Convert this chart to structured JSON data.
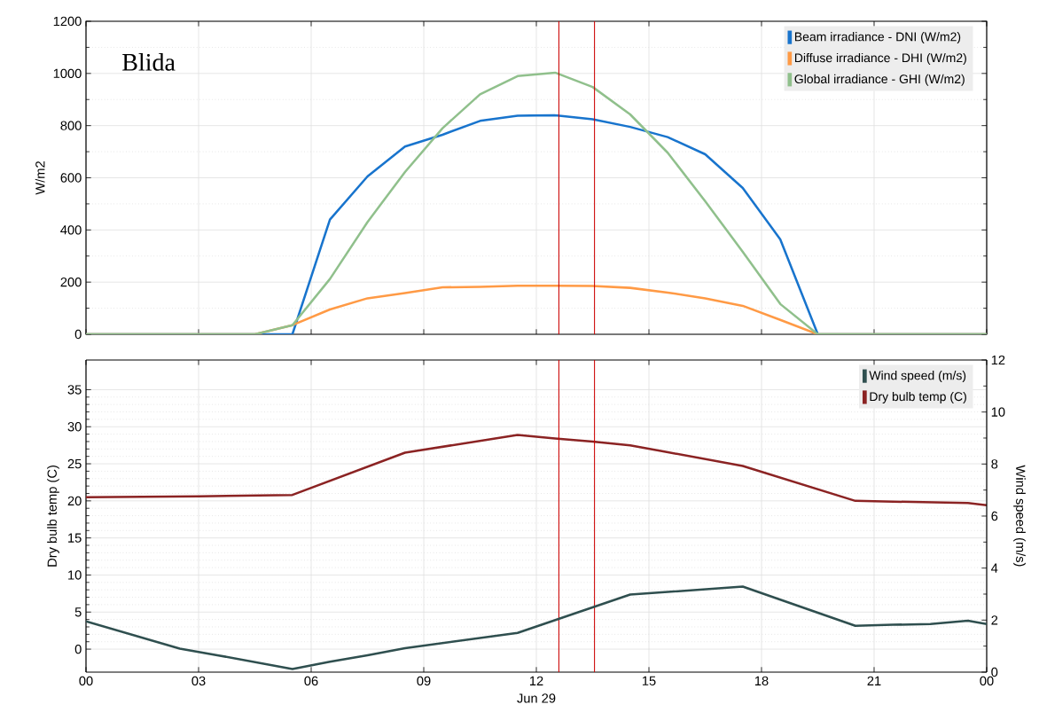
{
  "chart_data": [
    {
      "type": "line",
      "ylabel": "W/m2",
      "annotations": [
        "Blida"
      ],
      "xlim": [
        0,
        24
      ],
      "xticks": [
        {
          "value": 0,
          "label": null
        },
        {
          "value": 3,
          "label": null
        },
        {
          "value": 6,
          "label": null
        },
        {
          "value": 9,
          "label": null
        },
        {
          "value": 12,
          "label": null
        },
        {
          "value": 15,
          "label": null
        },
        {
          "value": 18,
          "label": null
        },
        {
          "value": 21,
          "label": null
        },
        {
          "value": 24,
          "label": null
        }
      ],
      "ylim": [
        0,
        1200
      ],
      "yticks": [
        0,
        200,
        400,
        600,
        800,
        1000,
        1200
      ],
      "tick_labels": "y",
      "grid": true,
      "legend": "top right",
      "marker": "none",
      "line_style": "solid",
      "ref_lines": [
        {
          "axis": "x",
          "value": 12.6,
          "color": "#cc0000"
        },
        {
          "axis": "x",
          "value": 13.55,
          "color": "#cc0000"
        }
      ],
      "series": [
        {
          "name": "Beam irradiance - DNI (W/m2)",
          "color": "#1874cd",
          "x": [
            0,
            5.5,
            6.5,
            7.5,
            8.5,
            9.5,
            10.5,
            11.5,
            12.5,
            13.5,
            14.5,
            15.5,
            16.5,
            17.5,
            18.5,
            19.5,
            24
          ],
          "values": [
            0,
            0,
            440,
            605,
            720,
            765,
            818,
            838,
            840,
            824,
            795,
            756,
            690,
            561,
            364,
            0,
            0
          ]
        },
        {
          "name": "Diffuse irradiance - DHI (W/m2)",
          "color": "#ff9a45",
          "x": [
            0,
            4.5,
            5.5,
            6.5,
            7.5,
            8.5,
            9.5,
            10.5,
            11.5,
            12.5,
            13.5,
            14.5,
            15.5,
            16.5,
            17.5,
            18.5,
            19.5,
            24
          ],
          "values": [
            0,
            0,
            35,
            95,
            138,
            158,
            180,
            182,
            186,
            186,
            185,
            178,
            160,
            138,
            109,
            55,
            0,
            0
          ]
        },
        {
          "name": "Global irradiance - GHI (W/m2)",
          "color": "#90c08c",
          "x": [
            0,
            4.5,
            5.5,
            6.5,
            7.5,
            8.5,
            9.5,
            10.5,
            11.5,
            12.5,
            13.5,
            14.5,
            15.5,
            16.5,
            17.5,
            18.5,
            19.5,
            24
          ],
          "values": [
            0,
            0,
            35,
            212,
            430,
            622,
            790,
            920,
            990,
            1003,
            948,
            843,
            696,
            510,
            316,
            116,
            0,
            0
          ]
        }
      ]
    },
    {
      "type": "line",
      "xlabel": "Jun 29",
      "ylabel": "Dry bulb temp (C)",
      "y2label": "Wind speed (m/s)",
      "xlim": [
        0,
        24
      ],
      "xticks": [
        {
          "value": 0,
          "label": "00"
        },
        {
          "value": 3,
          "label": "03"
        },
        {
          "value": 6,
          "label": "06"
        },
        {
          "value": 9,
          "label": "09"
        },
        {
          "value": 12,
          "label": "12"
        },
        {
          "value": 15,
          "label": "15"
        },
        {
          "value": 18,
          "label": "18"
        },
        {
          "value": 21,
          "label": "21"
        },
        {
          "value": 24,
          "label": "00"
        }
      ],
      "ylim": [
        -3.1,
        39
      ],
      "yticks": [
        0,
        5,
        10,
        15,
        20,
        25,
        30,
        35
      ],
      "y2lim": [
        0,
        12
      ],
      "y2ticks": [
        0,
        2,
        4,
        6,
        8,
        10,
        12
      ],
      "grid": true,
      "legend": "top right",
      "marker": "none",
      "line_style": "solid",
      "ref_lines": [
        {
          "axis": "x",
          "value": 12.6,
          "color": "#cc0000"
        },
        {
          "axis": "x",
          "value": 13.55,
          "color": "#cc0000"
        }
      ],
      "series": [
        {
          "name": "Wind speed (m/s)",
          "color": "#2f4f4f",
          "axis": "y2",
          "x": [
            0,
            2.5,
            3.5,
            5.5,
            6.5,
            7.5,
            8.5,
            11.5,
            14.5,
            17.5,
            20.5,
            21.5,
            22.5,
            23.5,
            24
          ],
          "values": [
            1.95,
            0.9,
            0.65,
            0.12,
            0.4,
            0.65,
            0.92,
            1.51,
            2.98,
            3.29,
            1.78,
            1.82,
            1.85,
            1.98,
            1.85
          ]
        },
        {
          "name": "Dry bulb temp (C)",
          "color": "#8b2323",
          "x": [
            0,
            3,
            5.5,
            8.5,
            11.5,
            12.5,
            13.5,
            14.5,
            17.5,
            20.5,
            23.5,
            24
          ],
          "values": [
            20.5,
            20.6,
            20.8,
            26.5,
            28.9,
            28.4,
            28.0,
            27.5,
            24.7,
            20.0,
            19.7,
            19.4
          ]
        }
      ]
    }
  ]
}
